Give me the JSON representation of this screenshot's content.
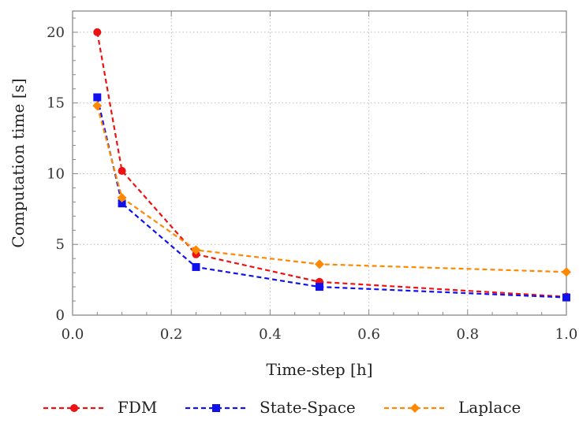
{
  "chart_data": {
    "type": "line",
    "xlabel": "Time-step [h]",
    "ylabel": "Computation time [s]",
    "xlim": [
      0.0,
      1.0
    ],
    "ylim": [
      0,
      21.5
    ],
    "xticks": [
      "0.0",
      "0.2",
      "0.4",
      "0.6",
      "0.8",
      "1.0"
    ],
    "yticks": [
      "0",
      "5",
      "10",
      "15",
      "20"
    ],
    "grid": true,
    "legend_position": "bottom",
    "series": [
      {
        "name": "FDM",
        "color": "#ee1111",
        "marker": "circle",
        "x": [
          0.05,
          0.1,
          0.25,
          0.5,
          1.0
        ],
        "y": [
          20.0,
          10.2,
          4.3,
          2.35,
          1.3
        ]
      },
      {
        "name": "State-Space",
        "color": "#1111ee",
        "marker": "square",
        "x": [
          0.05,
          0.1,
          0.25,
          0.5,
          1.0
        ],
        "y": [
          15.4,
          7.9,
          3.4,
          2.0,
          1.25
        ]
      },
      {
        "name": "Laplace",
        "color": "#ff8800",
        "marker": "diamond",
        "x": [
          0.05,
          0.1,
          0.25,
          0.5,
          1.0
        ],
        "y": [
          14.8,
          8.3,
          4.6,
          3.6,
          3.05
        ]
      }
    ]
  }
}
